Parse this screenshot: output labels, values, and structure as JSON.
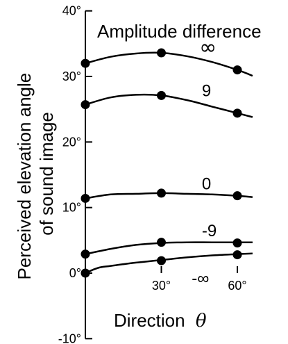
{
  "chart_data": {
    "type": "line",
    "title": "",
    "xlabel": "Direction",
    "xlabel_symbol": "θ",
    "ylabel_lines": [
      "Perceived elevation angle",
      "of sound image"
    ],
    "legend_title": "Amplitude difference",
    "xlim": [
      0,
      68
    ],
    "ylim": [
      -10,
      40
    ],
    "x_ticks": [
      30,
      60
    ],
    "x_tick_labels": [
      "30°",
      "60°"
    ],
    "y_ticks": [
      -10,
      0,
      10,
      20,
      30,
      40
    ],
    "y_tick_labels": [
      "-10°",
      "0°",
      "10°",
      "20°",
      "30°",
      "40°"
    ],
    "grid": false,
    "series": [
      {
        "name": "∞",
        "points": [
          {
            "x": 0,
            "y": 32.0
          },
          {
            "x": 30,
            "y": 33.6
          },
          {
            "x": 60,
            "y": 31.0
          }
        ],
        "curve": [
          [
            0,
            32.0
          ],
          [
            10,
            33.0
          ],
          [
            20,
            33.5
          ],
          [
            30,
            33.6
          ],
          [
            40,
            33.1
          ],
          [
            50,
            32.2
          ],
          [
            60,
            31.0
          ],
          [
            66,
            30.1
          ]
        ]
      },
      {
        "name": "9",
        "points": [
          {
            "x": 0,
            "y": 25.7
          },
          {
            "x": 30,
            "y": 27.1
          },
          {
            "x": 60,
            "y": 24.4
          }
        ],
        "curve": [
          [
            0,
            25.7
          ],
          [
            10,
            26.8
          ],
          [
            20,
            27.2
          ],
          [
            30,
            27.1
          ],
          [
            40,
            26.4
          ],
          [
            50,
            25.4
          ],
          [
            60,
            24.4
          ],
          [
            66,
            23.8
          ]
        ]
      },
      {
        "name": "0",
        "points": [
          {
            "x": 0,
            "y": 11.4
          },
          {
            "x": 30,
            "y": 12.2
          },
          {
            "x": 60,
            "y": 11.8
          }
        ],
        "curve": [
          [
            0,
            11.4
          ],
          [
            10,
            12.0
          ],
          [
            20,
            12.1
          ],
          [
            30,
            12.2
          ],
          [
            40,
            12.1
          ],
          [
            50,
            12.0
          ],
          [
            60,
            11.8
          ],
          [
            66,
            11.6
          ]
        ]
      },
      {
        "name": "-9",
        "points": [
          {
            "x": 0,
            "y": 2.9
          },
          {
            "x": 30,
            "y": 4.7
          },
          {
            "x": 60,
            "y": 4.6
          }
        ],
        "curve": [
          [
            0,
            2.9
          ],
          [
            10,
            3.7
          ],
          [
            20,
            4.3
          ],
          [
            30,
            4.6
          ],
          [
            40,
            4.7
          ],
          [
            50,
            4.7
          ],
          [
            60,
            4.7
          ],
          [
            66,
            4.7
          ]
        ]
      },
      {
        "name": "-∞",
        "points": [
          {
            "x": 0,
            "y": 0
          },
          {
            "x": 30,
            "y": 1.9
          },
          {
            "x": 60,
            "y": 2.8
          }
        ],
        "curve": [
          [
            0,
            0
          ],
          [
            5,
            0.8
          ],
          [
            10,
            1.1
          ],
          [
            20,
            1.6
          ],
          [
            30,
            2.0
          ],
          [
            40,
            2.4
          ],
          [
            50,
            2.7
          ],
          [
            60,
            2.9
          ],
          [
            66,
            3.0
          ]
        ]
      }
    ]
  }
}
